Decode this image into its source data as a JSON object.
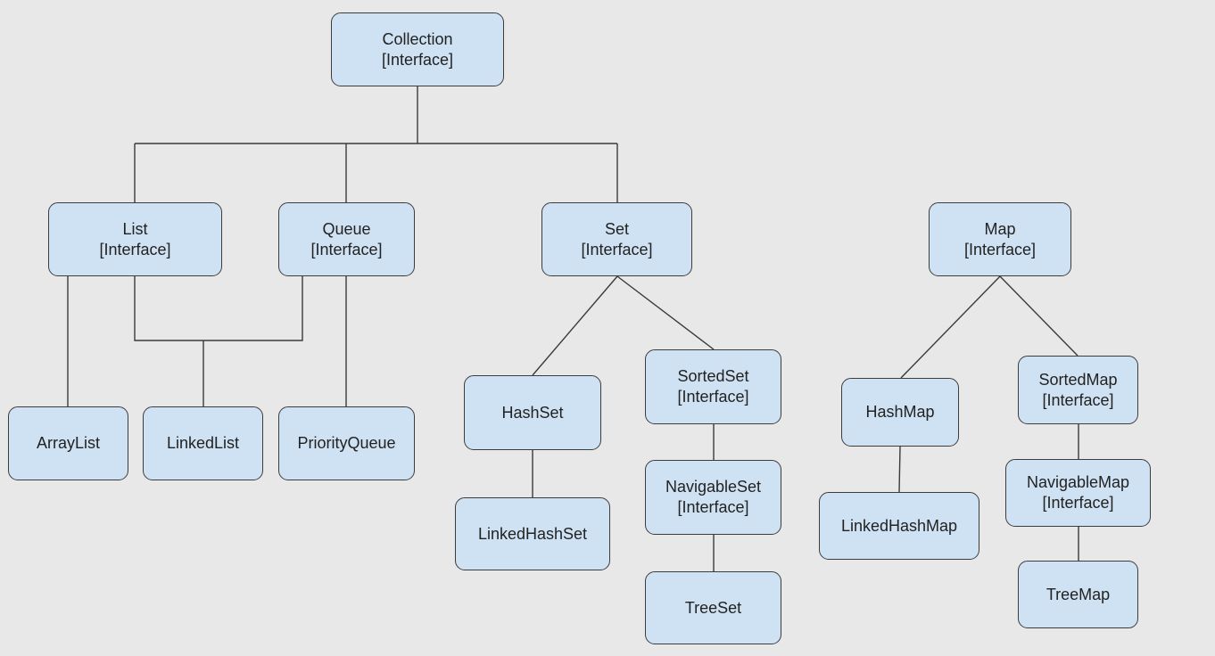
{
  "diagram": {
    "nodes": {
      "collection": {
        "name": "Collection",
        "kind": "[Interface]"
      },
      "list": {
        "name": "List",
        "kind": "[Interface]"
      },
      "queue": {
        "name": "Queue",
        "kind": "[Interface]"
      },
      "set": {
        "name": "Set",
        "kind": "[Interface]"
      },
      "map": {
        "name": "Map",
        "kind": "[Interface]"
      },
      "arraylist": {
        "name": "ArrayList"
      },
      "linkedlist": {
        "name": "LinkedList"
      },
      "priorityqueue": {
        "name": "PriorityQueue"
      },
      "hashset": {
        "name": "HashSet"
      },
      "linkedhashset": {
        "name": "LinkedHashSet"
      },
      "sortedset": {
        "name": "SortedSet",
        "kind": "[Interface]"
      },
      "navigableset": {
        "name": "NavigableSet",
        "kind": "[Interface]"
      },
      "treeset": {
        "name": "TreeSet"
      },
      "hashmap": {
        "name": "HashMap"
      },
      "linkedhashmap": {
        "name": "LinkedHashMap"
      },
      "sortedmap": {
        "name": "SortedMap",
        "kind": "[Interface]"
      },
      "navigablemap": {
        "name": "NavigableMap",
        "kind": "[Interface]"
      },
      "treemap": {
        "name": "TreeMap"
      }
    },
    "edges": [
      {
        "from": "collection",
        "to": "list"
      },
      {
        "from": "collection",
        "to": "queue"
      },
      {
        "from": "collection",
        "to": "set"
      },
      {
        "from": "list",
        "to": "arraylist"
      },
      {
        "from": "list",
        "to": "linkedlist"
      },
      {
        "from": "queue",
        "to": "linkedlist"
      },
      {
        "from": "queue",
        "to": "priorityqueue"
      },
      {
        "from": "set",
        "to": "hashset"
      },
      {
        "from": "set",
        "to": "sortedset"
      },
      {
        "from": "hashset",
        "to": "linkedhashset"
      },
      {
        "from": "sortedset",
        "to": "navigableset"
      },
      {
        "from": "navigableset",
        "to": "treeset"
      },
      {
        "from": "map",
        "to": "hashmap"
      },
      {
        "from": "map",
        "to": "sortedmap"
      },
      {
        "from": "hashmap",
        "to": "linkedhashmap"
      },
      {
        "from": "sortedmap",
        "to": "navigablemap"
      },
      {
        "from": "navigablemap",
        "to": "treemap"
      }
    ],
    "colors": {
      "background": "#e8e8e8",
      "node_fill": "#cfe2f3",
      "node_border": "#3c3c3c",
      "connector": "#3a3a3a",
      "text": "#222222"
    }
  }
}
